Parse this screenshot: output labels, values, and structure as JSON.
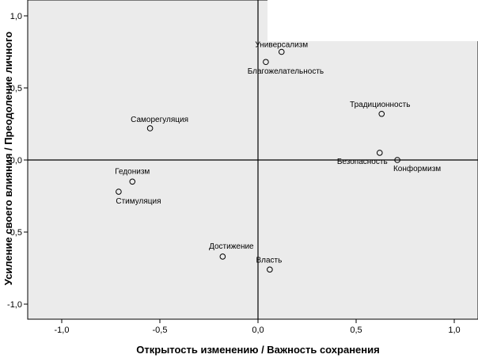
{
  "chart_data": {
    "type": "scatter",
    "title": "",
    "xlabel": "Открытость изменению / Важность сохранения",
    "ylabel": "Усиление своего влияния / Преодоление личного",
    "xlim": [
      -1.2,
      1.1
    ],
    "ylim": [
      -1.1,
      1.1
    ],
    "xticks": [
      -1.0,
      -0.5,
      0.0,
      0.5,
      1.0
    ],
    "yticks": [
      -1.0,
      -0.5,
      0.0,
      0.5,
      1.0
    ],
    "xtick_labels": [
      "-1,0",
      "-0,5",
      "0,0",
      "0,5",
      "1,0"
    ],
    "ytick_labels": [
      "-1,0",
      "-0,5",
      "0,0",
      "0,5",
      "1,0"
    ],
    "grid": false,
    "reference_lines": {
      "x": 0,
      "y": 0
    },
    "points": [
      {
        "label": "Универсализм",
        "x": 0.12,
        "y": 0.75
      },
      {
        "label": "Благожелательность",
        "x": 0.04,
        "y": 0.68
      },
      {
        "label": "Традиционность",
        "x": 0.63,
        "y": 0.32
      },
      {
        "label": "Саморегуляция",
        "x": -0.55,
        "y": 0.22
      },
      {
        "label": "Безопасность",
        "x": 0.62,
        "y": 0.05
      },
      {
        "label": "Конформизм",
        "x": 0.71,
        "y": 0.0
      },
      {
        "label": "Гедонизм",
        "x": -0.64,
        "y": -0.15
      },
      {
        "label": "Стимуляция",
        "x": -0.71,
        "y": -0.22
      },
      {
        "label": "Достижение",
        "x": -0.18,
        "y": -0.67
      },
      {
        "label": "Власть",
        "x": 0.06,
        "y": -0.76
      }
    ]
  },
  "colors": {
    "plot_background": "#ebebeb",
    "marker_stroke": "#000000",
    "axis": "#000000"
  }
}
